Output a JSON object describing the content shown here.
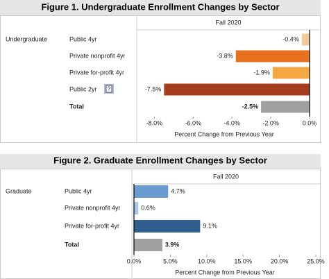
{
  "chart_data": [
    {
      "type": "bar",
      "title": "Figure 1. Undergraduate Enrollment Changes by Sector",
      "column_header": "Fall 2020",
      "group": "Undergraduate",
      "categories": [
        "Public 4yr",
        "Private nonprofit 4yr",
        "Private for-profit 4yr",
        "Public 2yr",
        "Total"
      ],
      "values": [
        -0.4,
        -3.8,
        -1.9,
        -7.5,
        -2.5
      ],
      "value_labels": [
        "-0.4%",
        "-3.8%",
        "-1.9%",
        "-7.5%",
        "-2.5%"
      ],
      "colors": [
        "#f2c99a",
        "#e8711f",
        "#f5a742",
        "#a63c1e",
        "#a0a0a0"
      ],
      "xlim": [
        -8.8,
        0
      ],
      "xticks": [
        {
          "value": -8,
          "label": "-8.0%"
        },
        {
          "value": -6,
          "label": "-6.0%"
        },
        {
          "value": -4,
          "label": "-4.0%"
        },
        {
          "value": -2,
          "label": "-2.0%"
        },
        {
          "value": 0,
          "label": "0.0%"
        }
      ],
      "x_label": "Percent Change from Previous Year"
    },
    {
      "type": "bar",
      "title": "Figure 2. Graduate Enrollment Changes by Sector",
      "column_header": "Fall 2020",
      "group": "Graduate",
      "categories": [
        "Public 4yr",
        "Private nonprofit 4yr",
        "Private for-profit 4yr",
        "Total"
      ],
      "values": [
        4.7,
        0.6,
        9.1,
        3.9
      ],
      "value_labels": [
        "4.7%",
        "0.6%",
        "9.1%",
        "3.9%"
      ],
      "colors": [
        "#6a9bd0",
        "#a9c6e6",
        "#2e5f8f",
        "#a0a0a0"
      ],
      "xlim": [
        0,
        25
      ],
      "xticks": [
        {
          "value": 0,
          "label": "0.0%"
        },
        {
          "value": 5,
          "label": "5.0%"
        },
        {
          "value": 10,
          "label": "10.0%"
        },
        {
          "value": 15,
          "label": "15.0%"
        },
        {
          "value": 20,
          "label": "20.0%"
        },
        {
          "value": 25,
          "label": "25.0%"
        }
      ],
      "x_label": "Percent Change from Previous Year"
    }
  ]
}
